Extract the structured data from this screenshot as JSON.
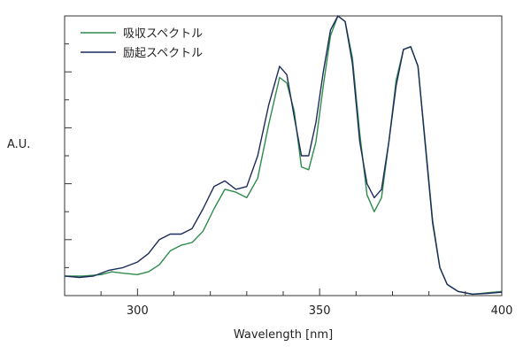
{
  "chart_data": {
    "type": "line",
    "xlabel": "Wavelength [nm]",
    "ylabel": "A.U.",
    "xlim": [
      280,
      400
    ],
    "ylim": [
      0,
      1
    ],
    "x_ticks": [
      300,
      350,
      400
    ],
    "y_ticks_unlabeled": 5,
    "grid": false,
    "legend_position": "top-left",
    "series": [
      {
        "name": "吸収スペクトル",
        "color": "#2e8b4e",
        "points": [
          [
            280,
            0.07
          ],
          [
            285,
            0.07
          ],
          [
            290,
            0.075
          ],
          [
            293,
            0.085
          ],
          [
            296,
            0.08
          ],
          [
            300,
            0.075
          ],
          [
            303,
            0.085
          ],
          [
            306,
            0.11
          ],
          [
            309,
            0.16
          ],
          [
            312,
            0.18
          ],
          [
            315,
            0.19
          ],
          [
            318,
            0.23
          ],
          [
            321,
            0.31
          ],
          [
            324,
            0.38
          ],
          [
            327,
            0.37
          ],
          [
            330,
            0.35
          ],
          [
            333,
            0.42
          ],
          [
            336,
            0.61
          ],
          [
            339,
            0.78
          ],
          [
            341,
            0.76
          ],
          [
            343,
            0.66
          ],
          [
            345,
            0.46
          ],
          [
            347,
            0.45
          ],
          [
            349,
            0.55
          ],
          [
            351,
            0.75
          ],
          [
            353,
            0.93
          ],
          [
            355,
            1.0
          ],
          [
            357,
            0.98
          ],
          [
            359,
            0.85
          ],
          [
            361,
            0.58
          ],
          [
            363,
            0.36
          ],
          [
            365,
            0.3
          ],
          [
            367,
            0.35
          ],
          [
            369,
            0.55
          ],
          [
            371,
            0.77
          ],
          [
            373,
            0.88
          ],
          [
            375,
            0.89
          ],
          [
            377,
            0.82
          ],
          [
            379,
            0.55
          ],
          [
            381,
            0.27
          ],
          [
            383,
            0.1
          ],
          [
            385,
            0.04
          ],
          [
            388,
            0.015
          ],
          [
            392,
            0.005
          ],
          [
            396,
            0.01
          ],
          [
            400,
            0.015
          ]
        ]
      },
      {
        "name": "励起スペクトル",
        "color": "#1c2b5a",
        "points": [
          [
            280,
            0.07
          ],
          [
            284,
            0.065
          ],
          [
            288,
            0.07
          ],
          [
            292,
            0.09
          ],
          [
            296,
            0.1
          ],
          [
            300,
            0.12
          ],
          [
            303,
            0.15
          ],
          [
            306,
            0.2
          ],
          [
            309,
            0.22
          ],
          [
            312,
            0.22
          ],
          [
            315,
            0.24
          ],
          [
            318,
            0.31
          ],
          [
            321,
            0.39
          ],
          [
            324,
            0.41
          ],
          [
            327,
            0.38
          ],
          [
            330,
            0.39
          ],
          [
            333,
            0.5
          ],
          [
            336,
            0.68
          ],
          [
            339,
            0.82
          ],
          [
            341,
            0.79
          ],
          [
            343,
            0.64
          ],
          [
            345,
            0.5
          ],
          [
            347,
            0.5
          ],
          [
            349,
            0.62
          ],
          [
            351,
            0.8
          ],
          [
            353,
            0.95
          ],
          [
            355,
            1.0
          ],
          [
            357,
            0.98
          ],
          [
            359,
            0.83
          ],
          [
            361,
            0.55
          ],
          [
            363,
            0.4
          ],
          [
            365,
            0.35
          ],
          [
            367,
            0.38
          ],
          [
            369,
            0.55
          ],
          [
            371,
            0.75
          ],
          [
            373,
            0.88
          ],
          [
            375,
            0.89
          ],
          [
            377,
            0.82
          ],
          [
            379,
            0.54
          ],
          [
            381,
            0.26
          ],
          [
            383,
            0.1
          ],
          [
            385,
            0.04
          ],
          [
            388,
            0.015
          ],
          [
            392,
            0.005
          ],
          [
            396,
            0.008
          ],
          [
            400,
            0.012
          ]
        ]
      }
    ]
  }
}
